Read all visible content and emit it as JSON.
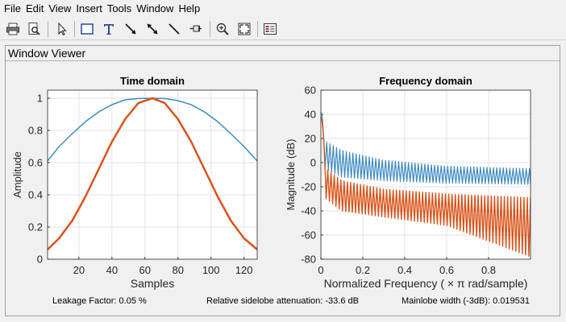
{
  "menu": [
    "File",
    "Edit",
    "View",
    "Insert",
    "Tools",
    "Window",
    "Help"
  ],
  "toolbar": {
    "buttons": [
      "print-icon",
      "print-preview-icon",
      "pointer-icon",
      "rectangle-icon",
      "text-insert-icon",
      "arrow-icon",
      "double-arrow-icon",
      "line-icon",
      "pin-icon",
      "zoom-in-icon",
      "fit-to-window-icon",
      "legend-icon"
    ]
  },
  "panel": {
    "title": "Window Viewer"
  },
  "colors": {
    "series1": "#3e8ac2",
    "series2": "#d95319"
  },
  "chart_data": [
    {
      "type": "line",
      "title": "Time domain",
      "xlabel": "Samples",
      "ylabel": "Amplitude",
      "xlim": [
        1,
        128
      ],
      "ylim": [
        0,
        1.05
      ],
      "xticks": [
        20,
        40,
        60,
        80,
        100,
        120
      ],
      "yticks": [
        0,
        0.2,
        0.4,
        0.6,
        0.8,
        1
      ],
      "ytick_labels": [
        "0",
        "0.2",
        "0.4",
        "0.6",
        "0.8",
        "1"
      ],
      "grid": true,
      "series": [
        {
          "color": "#3e8ac2",
          "x": [
            1,
            8,
            16,
            24,
            32,
            40,
            48,
            56,
            64.5,
            72,
            80,
            88,
            96,
            104,
            112,
            120,
            128
          ],
          "y": [
            0.61,
            0.7,
            0.78,
            0.855,
            0.915,
            0.96,
            0.99,
            0.998,
            1.0,
            0.998,
            0.985,
            0.96,
            0.915,
            0.855,
            0.78,
            0.7,
            0.61
          ]
        },
        {
          "color": "#d95319",
          "x": [
            1,
            8,
            16,
            24,
            32,
            40,
            48,
            56,
            64.5,
            72,
            80,
            88,
            96,
            104,
            112,
            120,
            128
          ],
          "y": [
            0.06,
            0.13,
            0.24,
            0.39,
            0.56,
            0.73,
            0.87,
            0.97,
            1.0,
            0.97,
            0.87,
            0.73,
            0.56,
            0.39,
            0.24,
            0.13,
            0.06
          ]
        }
      ]
    },
    {
      "type": "line",
      "title": "Frequency domain",
      "xlabel": "Normalized Frequency  ( × π rad/sample)",
      "ylabel": "Magnitude (dB)",
      "xlim": [
        0,
        1
      ],
      "ylim": [
        -80,
        60
      ],
      "xticks": [
        0,
        0.2,
        0.4,
        0.6,
        0.8
      ],
      "xtick_labels": [
        "0",
        "0.2",
        "0.4",
        "0.6",
        "0.8"
      ],
      "yticks": [
        -80,
        -60,
        -40,
        -20,
        0,
        20,
        40,
        60
      ],
      "grid": true,
      "series": [
        {
          "color": "#3e8ac2",
          "mainlobe": {
            "peak_db": 42,
            "null_x": 0.02
          },
          "sidelobe_top": {
            "x": [
              0.02,
              0.1,
              0.3,
              0.6,
              1.0
            ],
            "y": [
              18,
              10,
              2,
              -3,
              -5
            ]
          },
          "sidelobe_bottom": {
            "x": [
              0.02,
              0.1,
              0.3,
              0.6,
              1.0
            ],
            "y": [
              -5,
              -12,
              -15,
              -17,
              -18
            ]
          },
          "period": 0.0156
        },
        {
          "color": "#d95319",
          "mainlobe": {
            "peak_db": 38,
            "null_x": 0.025
          },
          "sidelobe_top": {
            "x": [
              0.025,
              0.1,
              0.3,
              0.6,
              1.0
            ],
            "y": [
              -5,
              -15,
              -22,
              -26,
              -29
            ]
          },
          "sidelobe_bottom": {
            "x": [
              0.025,
              0.1,
              0.3,
              0.6,
              1.0
            ],
            "y": [
              -30,
              -40,
              -45,
              -52,
              -78
            ]
          },
          "period": 0.0156
        }
      ]
    }
  ],
  "info": {
    "leakage": "Leakage Factor: 0.05 %",
    "sidelobe": "Relative sidelobe attenuation: -33.6 dB",
    "mainlobe": "Mainlobe width (-3dB): 0.019531"
  }
}
